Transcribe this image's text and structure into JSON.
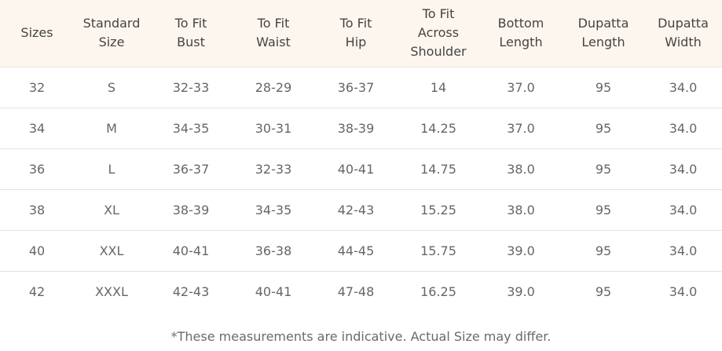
{
  "table": {
    "headers": [
      "Sizes",
      "Standard\nSize",
      "To Fit\nBust",
      "To Fit\nWaist",
      "To Fit\nHip",
      "To Fit\nAcross\nShoulder",
      "Bottom\nLength",
      "Dupatta\nLength",
      "Dupatta\nWidth"
    ],
    "rows": [
      [
        "32",
        "S",
        "32-33",
        "28-29",
        "36-37",
        "14",
        "37.0",
        "95",
        "34.0"
      ],
      [
        "34",
        "M",
        "34-35",
        "30-31",
        "38-39",
        "14.25",
        "37.0",
        "95",
        "34.0"
      ],
      [
        "36",
        "L",
        "36-37",
        "32-33",
        "40-41",
        "14.75",
        "38.0",
        "95",
        "34.0"
      ],
      [
        "38",
        "XL",
        "38-39",
        "34-35",
        "42-43",
        "15.25",
        "38.0",
        "95",
        "34.0"
      ],
      [
        "40",
        "XXL",
        "40-41",
        "36-38",
        "44-45",
        "15.75",
        "39.0",
        "95",
        "34.0"
      ],
      [
        "42",
        "XXXL",
        "42-43",
        "40-41",
        "47-48",
        "16.25",
        "39.0",
        "95",
        "34.0"
      ]
    ]
  },
  "footnote": "*These measurements are indicative. Actual Size may differ.",
  "colors": {
    "header_background": "#fdf6ee",
    "row_divider": "#e3e3e3"
  }
}
